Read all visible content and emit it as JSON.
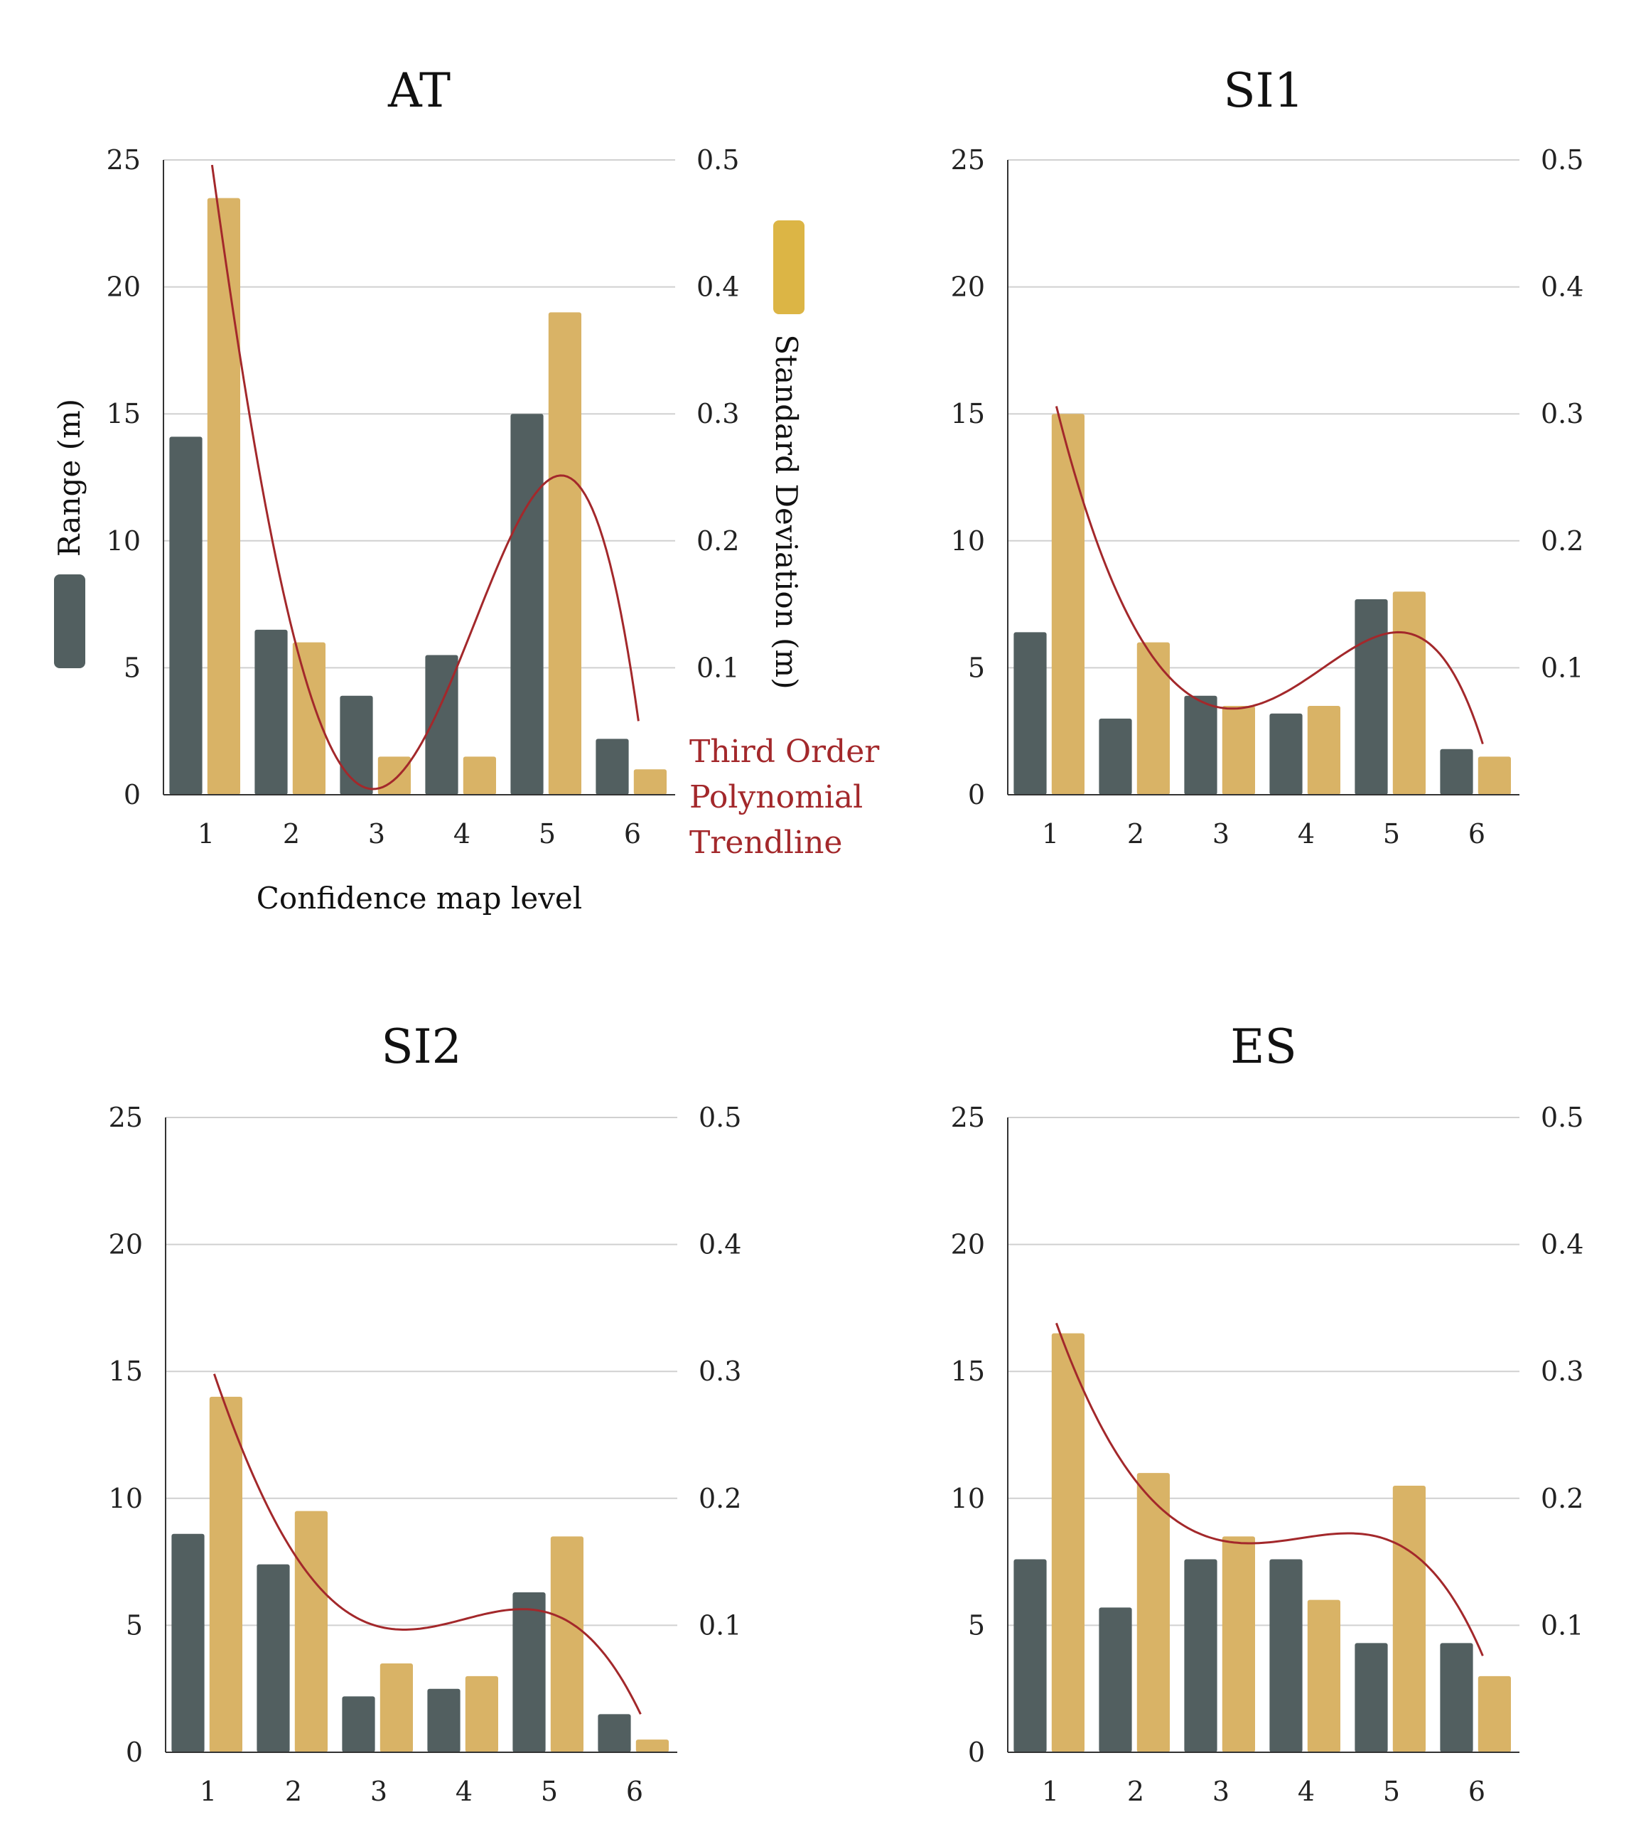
{
  "chart_data": [
    {
      "type": "bar",
      "title": "AT",
      "categories": [
        "1",
        "2",
        "3",
        "4",
        "5",
        "6"
      ],
      "xlabel": "Confidence map level",
      "ylabel": "Range (m)",
      "y2label": "Standard Deviation (m)",
      "ylim": [
        0,
        25
      ],
      "y2lim": [
        0,
        0.5
      ],
      "yticks": [
        "0",
        "5",
        "10",
        "15",
        "20",
        "25"
      ],
      "y2ticks": [
        "0.1",
        "0.2",
        "0.3",
        "0.4",
        "0.5"
      ],
      "grid": true,
      "series": [
        {
          "name": "Range (m)",
          "axis": "left",
          "values": [
            14.1,
            6.5,
            3.9,
            5.5,
            15.0,
            2.2
          ]
        },
        {
          "name": "Standard Deviation (m)",
          "axis": "right",
          "values": [
            0.47,
            0.12,
            0.03,
            0.03,
            0.38,
            0.02
          ]
        }
      ],
      "trendline": {
        "name": "Third Order Polynomial Trendline",
        "axis": "left",
        "values": [
          24.8,
          5.7,
          0.3,
          6.1,
          12.5,
          2.9
        ]
      }
    },
    {
      "type": "bar",
      "title": "SI1",
      "categories": [
        "1",
        "2",
        "3",
        "4",
        "5",
        "6"
      ],
      "ylim": [
        0,
        25
      ],
      "y2lim": [
        0,
        0.5
      ],
      "yticks": [
        "0",
        "5",
        "10",
        "15",
        "20",
        "25"
      ],
      "y2ticks": [
        "0.1",
        "0.2",
        "0.3",
        "0.4",
        "0.5"
      ],
      "grid": true,
      "series": [
        {
          "name": "Range (m)",
          "axis": "left",
          "values": [
            6.4,
            3.0,
            3.9,
            3.2,
            7.7,
            1.8
          ]
        },
        {
          "name": "Standard Deviation (m)",
          "axis": "right",
          "values": [
            0.3,
            0.12,
            0.07,
            0.07,
            0.16,
            0.03
          ]
        }
      ],
      "trendline": {
        "name": "Third Order Polynomial Trendline",
        "axis": "left",
        "values": [
          15.3,
          6.1,
          3.4,
          4.7,
          6.4,
          2.0
        ]
      }
    },
    {
      "type": "bar",
      "title": "SI2",
      "categories": [
        "1",
        "2",
        "3",
        "4",
        "5",
        "6"
      ],
      "ylim": [
        0,
        25
      ],
      "y2lim": [
        0,
        0.5
      ],
      "yticks": [
        "0",
        "5",
        "10",
        "15",
        "20",
        "25"
      ],
      "y2ticks": [
        "0.1",
        "0.2",
        "0.3",
        "0.4",
        "0.5"
      ],
      "grid": true,
      "series": [
        {
          "name": "Range (m)",
          "axis": "left",
          "values": [
            8.6,
            7.4,
            2.2,
            2.5,
            6.3,
            1.5
          ]
        },
        {
          "name": "Standard Deviation (m)",
          "axis": "right",
          "values": [
            0.28,
            0.19,
            0.07,
            0.06,
            0.17,
            0.01
          ]
        }
      ],
      "trendline": {
        "name": "Third Order Polynomial Trendline",
        "axis": "left",
        "values": [
          14.9,
          7.5,
          4.9,
          5.3,
          5.4,
          1.5
        ]
      }
    },
    {
      "type": "bar",
      "title": "ES",
      "categories": [
        "1",
        "2",
        "3",
        "4",
        "5",
        "6"
      ],
      "ylim": [
        0,
        25
      ],
      "y2lim": [
        0,
        0.5
      ],
      "yticks": [
        "0",
        "5",
        "10",
        "15",
        "20",
        "25"
      ],
      "y2ticks": [
        "0.1",
        "0.2",
        "0.3",
        "0.4",
        "0.5"
      ],
      "grid": true,
      "series": [
        {
          "name": "Range (m)",
          "axis": "left",
          "values": [
            7.6,
            5.7,
            7.6,
            7.6,
            4.3,
            4.3
          ]
        },
        {
          "name": "Standard Deviation (m)",
          "axis": "right",
          "values": [
            0.33,
            0.22,
            0.17,
            0.12,
            0.21,
            0.06
          ]
        }
      ],
      "trendline": {
        "name": "Third Order Polynomial Trendline",
        "axis": "left",
        "values": [
          16.9,
          10.4,
          8.3,
          8.5,
          8.2,
          3.8
        ]
      }
    }
  ],
  "colors": {
    "range": "#525f60",
    "sd": "#d9b366",
    "trend": "#a3282b",
    "legend_sd": "#dcb545"
  },
  "annotations": {
    "trend_label": [
      "Third Order",
      "Polynomial",
      "Trendline"
    ]
  }
}
